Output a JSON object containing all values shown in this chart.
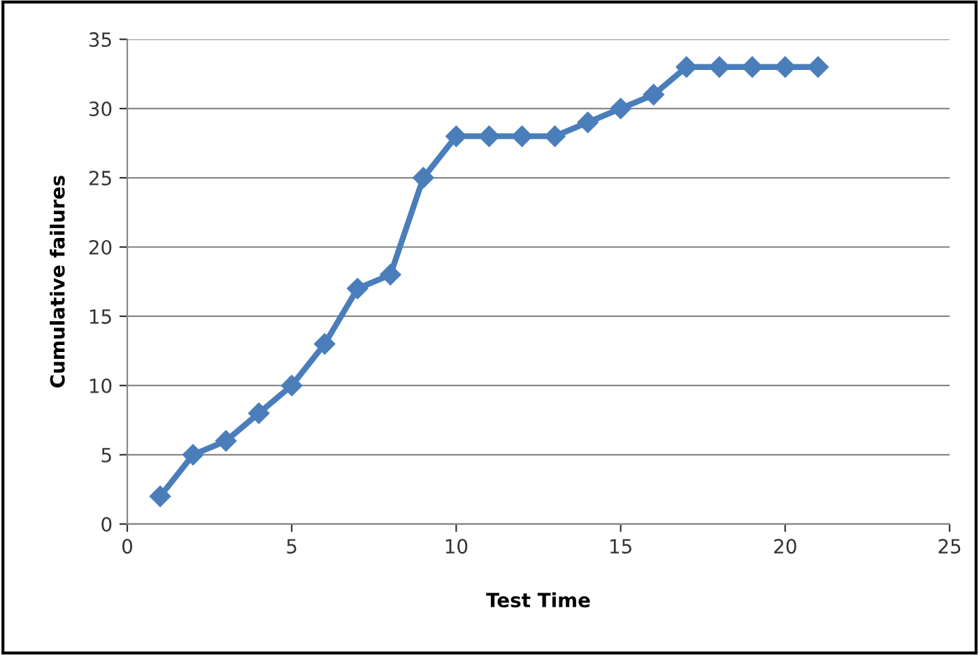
{
  "chart_data": {
    "type": "line",
    "xlabel": "Test Time",
    "ylabel": "Cumulative failures",
    "x": [
      1,
      2,
      3,
      4,
      5,
      6,
      7,
      8,
      9,
      10,
      11,
      12,
      13,
      14,
      15,
      16,
      17,
      18,
      19,
      20,
      21
    ],
    "series": [
      {
        "color": "#4a7ebb",
        "values": [
          2,
          5,
          6,
          8,
          10,
          13,
          17,
          18,
          25,
          28,
          28,
          28,
          28,
          29,
          30,
          31,
          33,
          33,
          33,
          33,
          33
        ]
      }
    ],
    "xlim": [
      0,
      25
    ],
    "xticks": [
      0,
      5,
      10,
      15,
      20,
      25
    ],
    "ylim": [
      0,
      35
    ],
    "yticks": [
      0,
      5,
      10,
      15,
      20,
      25,
      30,
      35
    ],
    "grid": "y",
    "marker": "diamond",
    "line_style": "solid"
  }
}
